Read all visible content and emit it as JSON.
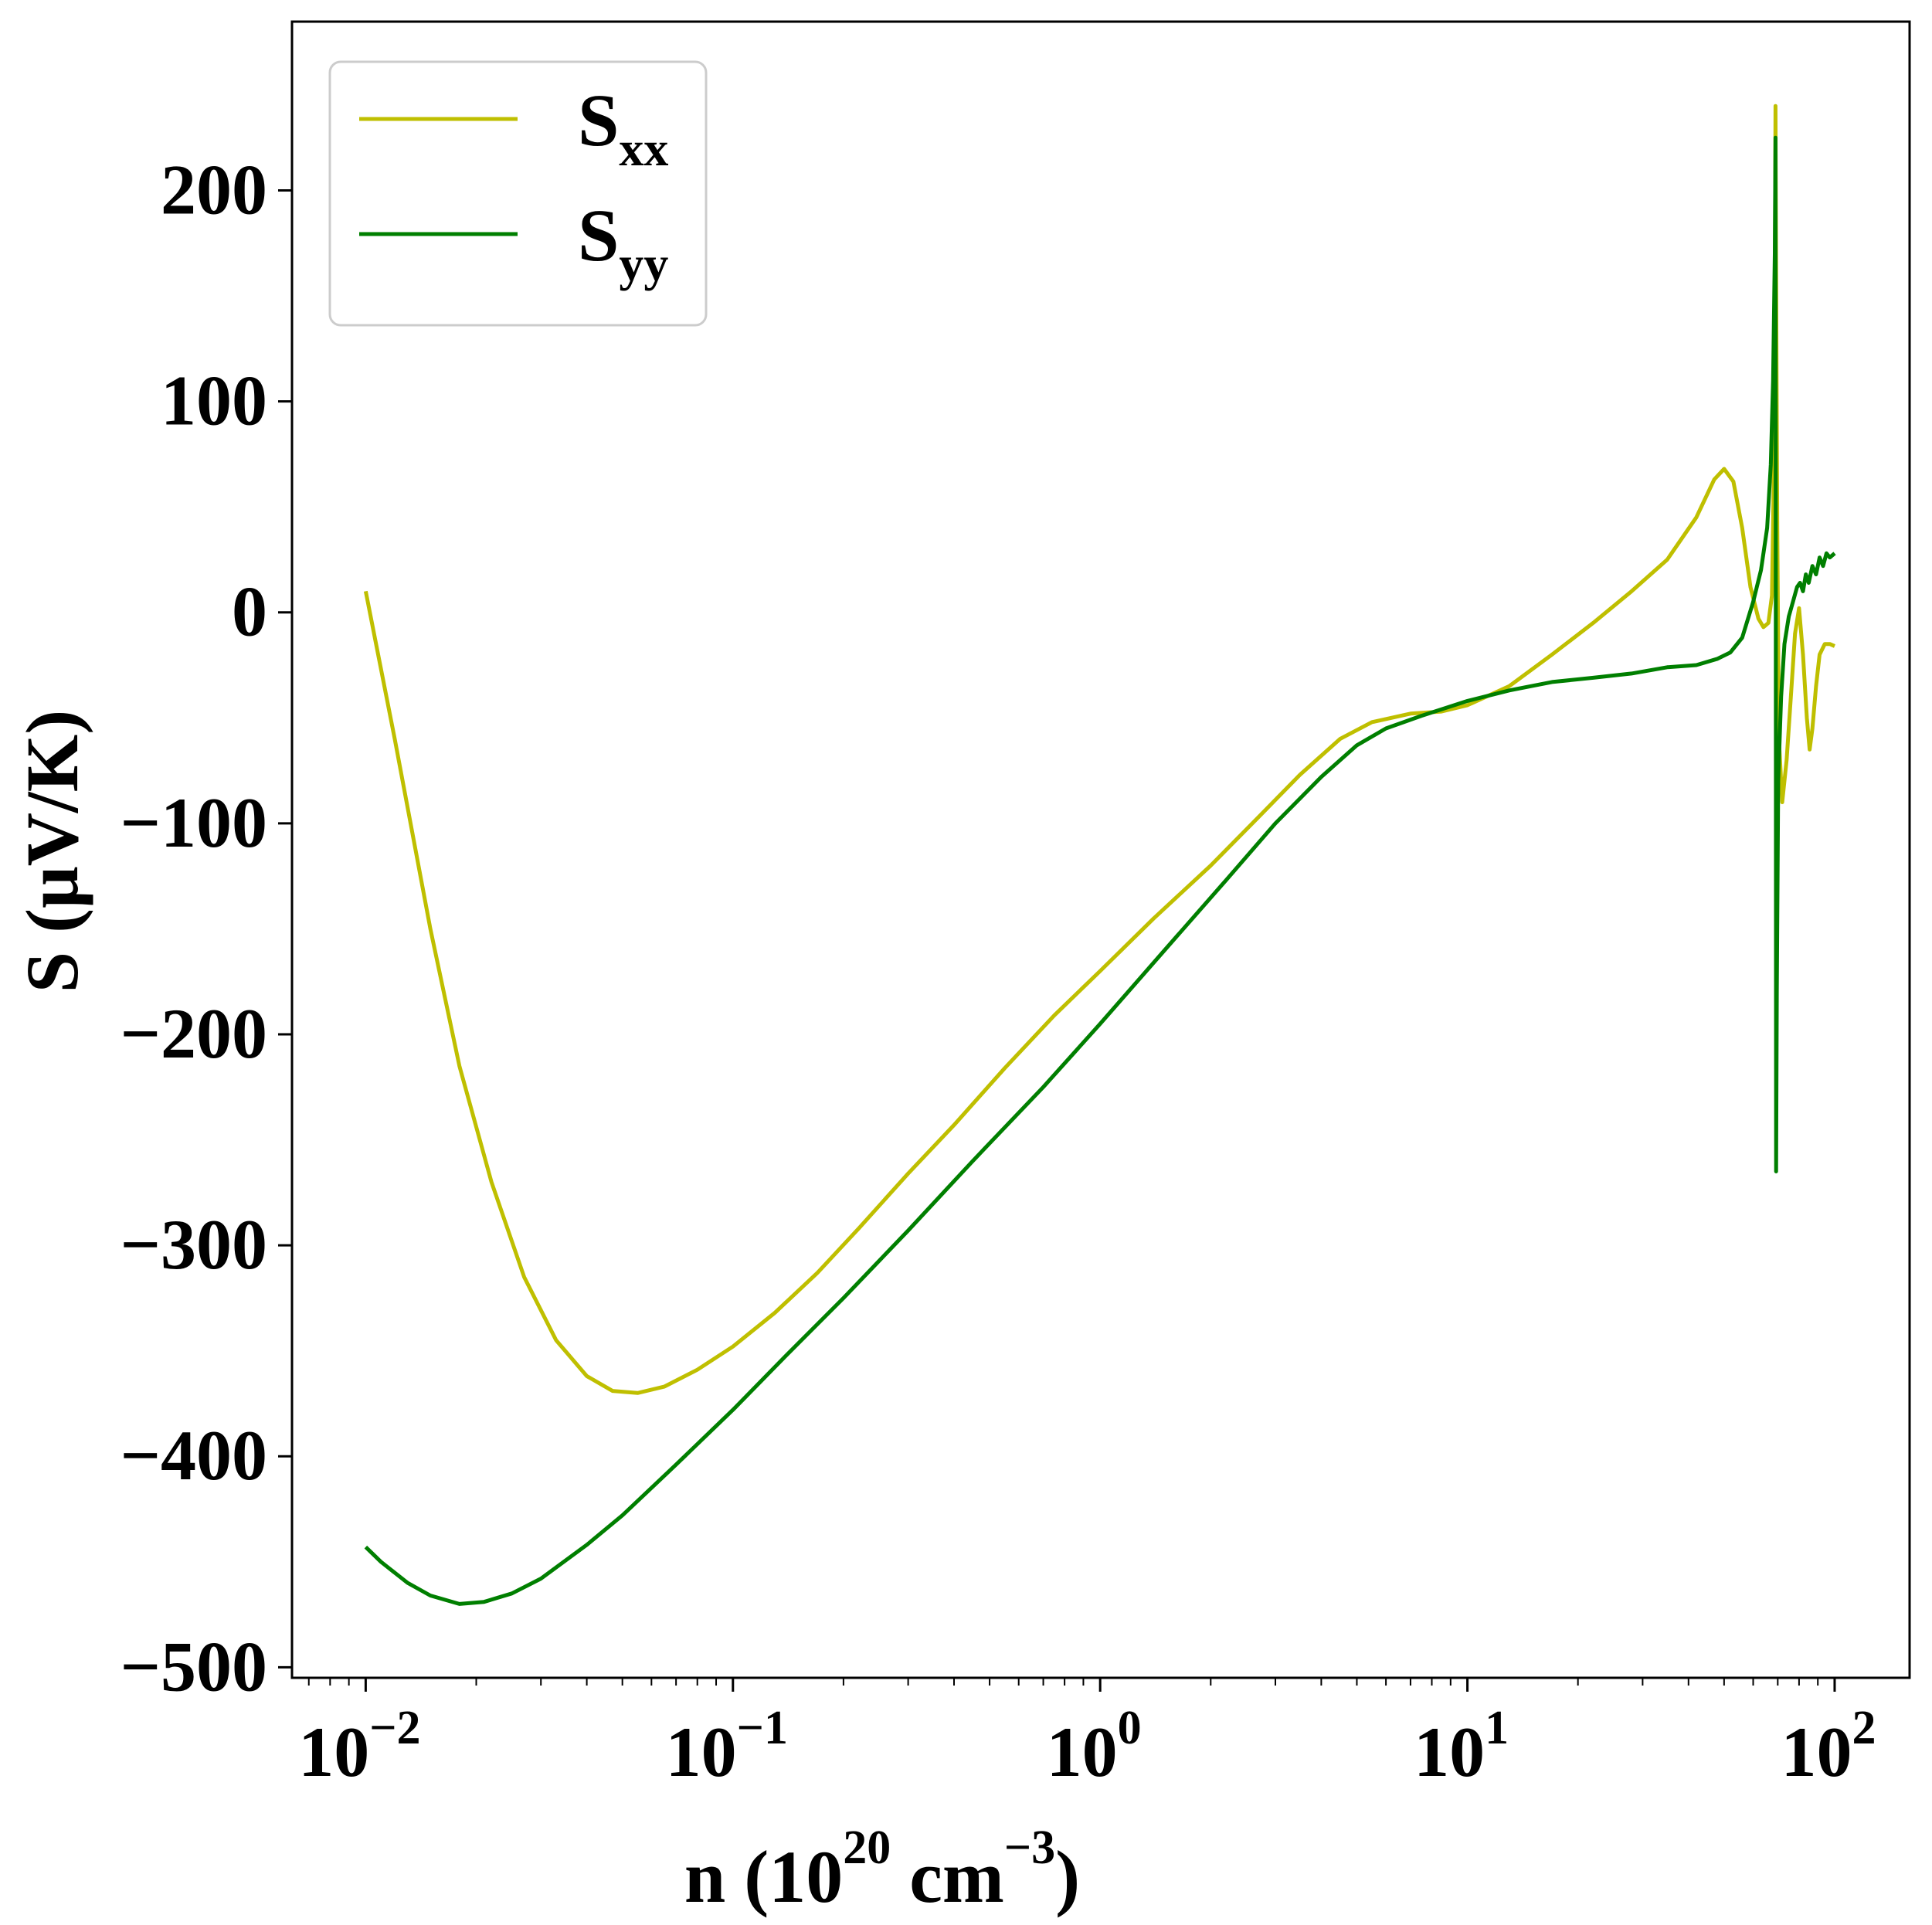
{
  "chart_data": {
    "type": "line",
    "xlabel": {
      "prefix": "n (10",
      "exp1": "20",
      "middle": " cm",
      "exp2": "−3",
      "suffix": ")"
    },
    "ylabel": "S (μV/K)",
    "xscale": "log",
    "xlim": [
      0.0063,
      160
    ],
    "ylim": [
      -505,
      280
    ],
    "grid": false,
    "legend_position": "upper-left",
    "x_ticks": [
      {
        "value": 0.01,
        "base": "10",
        "exp": "−2"
      },
      {
        "value": 0.1,
        "base": "10",
        "exp": "−1"
      },
      {
        "value": 1,
        "base": "10",
        "exp": "0"
      },
      {
        "value": 10,
        "base": "10",
        "exp": "1"
      },
      {
        "value": 100,
        "base": "10",
        "exp": "2"
      }
    ],
    "y_ticks": [
      {
        "value": 200,
        "label": "200"
      },
      {
        "value": 100,
        "label": "100"
      },
      {
        "value": 0,
        "label": "0"
      },
      {
        "value": -100,
        "label": "−100"
      },
      {
        "value": -200,
        "label": "−200"
      },
      {
        "value": -300,
        "label": "−300"
      },
      {
        "value": -400,
        "label": "−400"
      },
      {
        "value": -500,
        "label": "−500"
      }
    ],
    "series": [
      {
        "name": "S",
        "name_sub": "xx",
        "color": "#bfbf00",
        "points": [
          [
            0.01,
            10
          ],
          [
            0.012,
            -60
          ],
          [
            0.015,
            -150
          ],
          [
            0.018,
            -215
          ],
          [
            0.022,
            -270
          ],
          [
            0.027,
            -315
          ],
          [
            0.033,
            -345
          ],
          [
            0.04,
            -362
          ],
          [
            0.047,
            -369
          ],
          [
            0.055,
            -370
          ],
          [
            0.065,
            -367
          ],
          [
            0.08,
            -359
          ],
          [
            0.1,
            -348
          ],
          [
            0.13,
            -332
          ],
          [
            0.17,
            -313
          ],
          [
            0.22,
            -292
          ],
          [
            0.3,
            -266
          ],
          [
            0.4,
            -243
          ],
          [
            0.55,
            -216
          ],
          [
            0.75,
            -191
          ],
          [
            1.0,
            -170
          ],
          [
            1.4,
            -145
          ],
          [
            2.0,
            -120
          ],
          [
            2.7,
            -97
          ],
          [
            3.5,
            -77
          ],
          [
            4.5,
            -60
          ],
          [
            5.5,
            -52
          ],
          [
            7.0,
            -48
          ],
          [
            8.5,
            -47
          ],
          [
            10,
            -44
          ],
          [
            13,
            -35
          ],
          [
            17,
            -20
          ],
          [
            22,
            -5
          ],
          [
            28,
            10
          ],
          [
            35,
            25
          ],
          [
            42,
            45
          ],
          [
            47,
            63
          ],
          [
            50,
            68
          ],
          [
            53,
            62
          ],
          [
            56,
            40
          ],
          [
            59,
            12
          ],
          [
            62,
            -3
          ],
          [
            64,
            -7
          ],
          [
            66,
            -5
          ],
          [
            67.5,
            8
          ],
          [
            68.5,
            80
          ],
          [
            69,
            240
          ],
          [
            69.3,
            160
          ],
          [
            69.8,
            40
          ],
          [
            70.5,
            -60
          ],
          [
            72,
            -90
          ],
          [
            74,
            -70
          ],
          [
            76,
            -40
          ],
          [
            78,
            -10
          ],
          [
            80,
            2
          ],
          [
            82,
            -20
          ],
          [
            84,
            -50
          ],
          [
            85.5,
            -65
          ],
          [
            87,
            -55
          ],
          [
            89,
            -35
          ],
          [
            91,
            -20
          ],
          [
            94,
            -15
          ],
          [
            97,
            -15
          ],
          [
            100,
            -16
          ]
        ]
      },
      {
        "name": "S",
        "name_sub": "yy",
        "color": "#007f00",
        "points": [
          [
            0.01,
            -443
          ],
          [
            0.011,
            -450
          ],
          [
            0.013,
            -460
          ],
          [
            0.015,
            -466
          ],
          [
            0.018,
            -470
          ],
          [
            0.021,
            -469
          ],
          [
            0.025,
            -465
          ],
          [
            0.03,
            -458
          ],
          [
            0.04,
            -442
          ],
          [
            0.05,
            -428
          ],
          [
            0.07,
            -404
          ],
          [
            0.1,
            -378
          ],
          [
            0.14,
            -352
          ],
          [
            0.2,
            -325
          ],
          [
            0.3,
            -293
          ],
          [
            0.45,
            -260
          ],
          [
            0.7,
            -225
          ],
          [
            1.0,
            -195
          ],
          [
            1.5,
            -160
          ],
          [
            2.2,
            -127
          ],
          [
            3.0,
            -100
          ],
          [
            4.0,
            -78
          ],
          [
            5.0,
            -63
          ],
          [
            6.0,
            -55
          ],
          [
            7.5,
            -49
          ],
          [
            10,
            -42
          ],
          [
            13,
            -37
          ],
          [
            17,
            -33
          ],
          [
            22,
            -31
          ],
          [
            28,
            -29
          ],
          [
            35,
            -26
          ],
          [
            42,
            -25
          ],
          [
            48,
            -22
          ],
          [
            52,
            -19
          ],
          [
            56,
            -12
          ],
          [
            60,
            5
          ],
          [
            63,
            20
          ],
          [
            65.5,
            40
          ],
          [
            67,
            70
          ],
          [
            68,
            110
          ],
          [
            68.7,
            170
          ],
          [
            69,
            225
          ],
          [
            69.15,
            0
          ],
          [
            69.3,
            -265
          ],
          [
            69.6,
            -180
          ],
          [
            70.2,
            -80
          ],
          [
            71.5,
            -40
          ],
          [
            73,
            -15
          ],
          [
            75,
            -2
          ],
          [
            77,
            5
          ],
          [
            79,
            12
          ],
          [
            80.5,
            14
          ],
          [
            82,
            10
          ],
          [
            83.5,
            18
          ],
          [
            85,
            14
          ],
          [
            87,
            22
          ],
          [
            89,
            18
          ],
          [
            91,
            26
          ],
          [
            93,
            22
          ],
          [
            95,
            28
          ],
          [
            97,
            26
          ],
          [
            100,
            28
          ]
        ]
      }
    ]
  }
}
